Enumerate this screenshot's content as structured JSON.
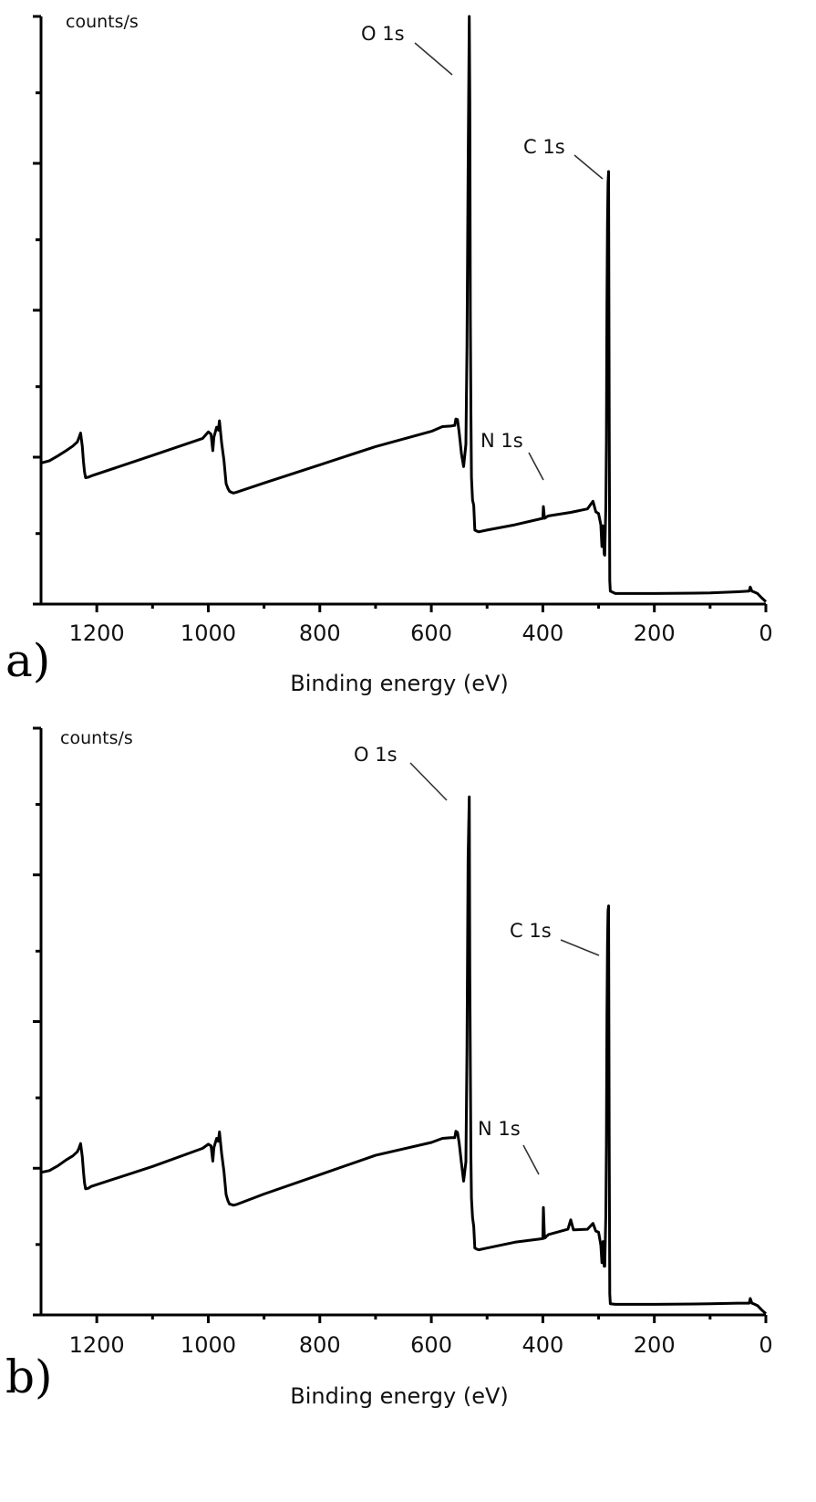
{
  "chart_data": [
    {
      "type": "line",
      "panel_label": "a)",
      "xlabel": "Binding energy (eV)",
      "ylabel": "counts/s",
      "xlim": [
        1300,
        0
      ],
      "x_reversed": true,
      "ylim": [
        0,
        100
      ],
      "x_ticks": [
        1200,
        1000,
        800,
        600,
        400,
        200,
        0
      ],
      "y_ticks": [
        0,
        12,
        25,
        37,
        50,
        62,
        75,
        87,
        100
      ],
      "series": [
        {
          "x": [
            1300,
            1285,
            1270,
            1255,
            1243,
            1235,
            1232,
            1229,
            1226,
            1224,
            1222,
            1220,
            1215,
            1210,
            1100,
            1010,
            1000,
            995,
            992,
            990,
            985,
            982,
            980,
            976,
            972,
            968,
            965,
            962,
            958,
            955,
            950,
            900,
            800,
            700,
            600,
            580,
            565,
            558,
            556,
            553,
            550,
            546,
            542,
            538,
            536,
            534,
            532,
            531,
            530,
            529,
            528,
            526,
            524,
            522,
            518,
            515,
            500,
            450,
            400,
            399,
            397,
            395,
            394,
            392,
            390,
            350,
            320,
            310,
            305,
            300,
            296,
            294,
            292,
            290,
            289,
            287,
            286,
            285,
            284,
            283,
            282,
            281,
            280,
            279,
            270,
            200,
            100,
            50,
            30,
            28,
            25,
            22,
            15,
            8,
            0
          ],
          "y": [
            24,
            24.4,
            25.2,
            26.1,
            26.9,
            27.6,
            28.3,
            29.1,
            26.8,
            24.3,
            22.5,
            21.5,
            21.6,
            21.8,
            25.3,
            28.2,
            29.3,
            28.9,
            26.1,
            28.4,
            30.1,
            29.6,
            31.2,
            27.4,
            24.5,
            20.5,
            19.7,
            19.2,
            19.0,
            18.9,
            19.0,
            20.6,
            23.7,
            26.8,
            29.4,
            30.2,
            30.3,
            30.4,
            31.5,
            31.4,
            29.1,
            25.6,
            23.4,
            27.2,
            43.8,
            73.4,
            100,
            85.5,
            48.8,
            33.0,
            21.6,
            17.7,
            16.8,
            12.6,
            12.4,
            12.3,
            12.6,
            13.5,
            14.6,
            16.6,
            14.6,
            14.7,
            14.8,
            14.9,
            15.0,
            15.6,
            16.2,
            17.5,
            15.7,
            15.4,
            13.5,
            9.8,
            13.3,
            8.5,
            8.3,
            16.7,
            27.6,
            51.2,
            64.9,
            71.8,
            73.6,
            31.9,
            4.0,
            2.2,
            1.8,
            1.8,
            1.9,
            2.1,
            2.2,
            2.9,
            2.2,
            2.1,
            1.8,
            1.1,
            0.4
          ]
        }
      ],
      "annotations": [
        {
          "text": "O 1s",
          "x": 532
        },
        {
          "text": "C 1s",
          "x": 285
        },
        {
          "text": "N 1s",
          "x": 399
        }
      ]
    },
    {
      "type": "line",
      "panel_label": "b)",
      "xlabel": "Binding energy (eV)",
      "ylabel": "counts/s",
      "xlim": [
        1300,
        0
      ],
      "x_reversed": true,
      "ylim": [
        0,
        100
      ],
      "x_ticks": [
        1200,
        1000,
        800,
        600,
        400,
        200,
        0
      ],
      "y_ticks": [
        0,
        12,
        25,
        37,
        50,
        62,
        75,
        87,
        100
      ],
      "series": [
        {
          "x": [
            1300,
            1285,
            1270,
            1255,
            1243,
            1235,
            1232,
            1229,
            1226,
            1224,
            1222,
            1220,
            1215,
            1210,
            1100,
            1010,
            1000,
            995,
            992,
            990,
            985,
            982,
            980,
            976,
            972,
            968,
            965,
            962,
            958,
            955,
            950,
            900,
            800,
            700,
            600,
            580,
            565,
            558,
            556,
            553,
            550,
            546,
            542,
            538,
            536,
            534,
            532,
            531,
            530,
            529,
            528,
            526,
            524,
            522,
            518,
            515,
            500,
            450,
            400,
            399,
            397,
            395,
            394,
            392,
            390,
            355,
            350,
            345,
            320,
            310,
            305,
            300,
            296,
            294,
            292,
            290,
            289,
            287,
            286,
            285,
            284,
            283,
            282,
            281,
            280,
            279,
            270,
            200,
            100,
            50,
            30,
            28,
            25,
            22,
            15,
            8,
            0
          ],
          "y": [
            24.3,
            24.6,
            25.4,
            26.4,
            27.1,
            27.8,
            28.4,
            29.2,
            26.9,
            24.5,
            22.5,
            21.5,
            21.6,
            21.9,
            25.3,
            28.4,
            29.1,
            28.8,
            26.2,
            28.5,
            30.1,
            29.6,
            31.2,
            27.5,
            24.5,
            20.5,
            19.5,
            18.9,
            18.8,
            18.7,
            18.8,
            20.6,
            23.9,
            27.2,
            29.4,
            30.1,
            30.2,
            30.2,
            31.3,
            31.1,
            29.2,
            25.9,
            22.8,
            26.1,
            45.1,
            77.6,
            88.3,
            58.2,
            42.2,
            27.2,
            19.9,
            16.6,
            15.1,
            11.4,
            11.2,
            11.1,
            11.4,
            12.4,
            13.0,
            18.3,
            13.1,
            13.2,
            13.4,
            13.5,
            13.7,
            14.6,
            16.2,
            14.5,
            14.6,
            15.6,
            14.3,
            14.1,
            11.9,
            8.9,
            12.5,
            8.3,
            8.3,
            17.2,
            28.9,
            50.9,
            63.2,
            68.9,
            69.7,
            29.4,
            3.6,
            1.9,
            1.8,
            1.8,
            1.9,
            2.0,
            2.0,
            2.8,
            2.0,
            1.9,
            1.6,
            0.9,
            0.2
          ]
        }
      ],
      "annotations": [
        {
          "text": "O 1s",
          "x": 534
        },
        {
          "text": "C 1s",
          "x": 285
        },
        {
          "text": "N 1s",
          "x": 399
        }
      ]
    }
  ]
}
